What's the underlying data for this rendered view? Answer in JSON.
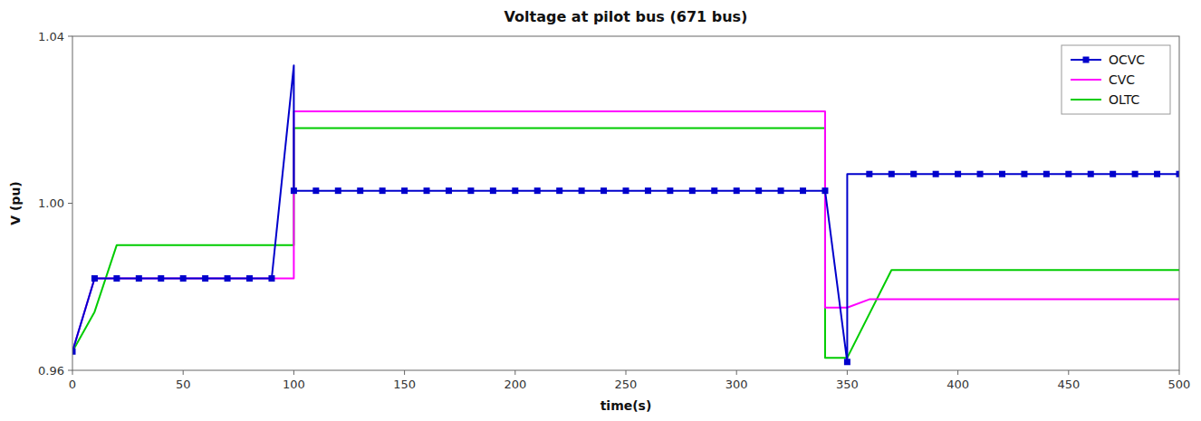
{
  "chart_data": {
    "type": "line",
    "title": "Voltage at pilot bus (671 bus)",
    "x_label": "time(s)",
    "y_label": "V (pu)",
    "xlim": [
      0,
      500
    ],
    "ylim": [
      0.96,
      1.04
    ],
    "xticks": [
      0,
      50,
      100,
      150,
      200,
      250,
      300,
      350,
      400,
      450,
      500
    ],
    "yticks": [
      0.96,
      {
        "value": 1.0,
        "label": "1.00"
      },
      1.04
    ],
    "grid": false,
    "legend": "upper right",
    "series": [
      {
        "name": "OCVC",
        "color": "#0000CC",
        "marker": "square",
        "x": [
          0,
          10,
          20,
          30,
          40,
          50,
          60,
          70,
          80,
          90,
          100,
          100,
          110,
          120,
          130,
          140,
          150,
          160,
          170,
          180,
          190,
          200,
          210,
          220,
          230,
          240,
          250,
          260,
          270,
          280,
          290,
          300,
          310,
          320,
          330,
          340,
          340,
          350,
          350,
          360,
          370,
          380,
          390,
          400,
          410,
          420,
          430,
          440,
          450,
          460,
          470,
          480,
          490,
          500
        ],
        "values": [
          0.9645,
          0.982,
          0.982,
          0.982,
          0.982,
          0.982,
          0.982,
          0.982,
          0.982,
          0.982,
          1.033,
          1.003,
          1.003,
          1.003,
          1.003,
          1.003,
          1.003,
          1.003,
          1.003,
          1.003,
          1.003,
          1.003,
          1.003,
          1.003,
          1.003,
          1.003,
          1.003,
          1.003,
          1.003,
          1.003,
          1.003,
          1.003,
          1.003,
          1.003,
          1.003,
          1.003,
          1.003,
          0.962,
          1.007,
          1.007,
          1.007,
          1.007,
          1.007,
          1.007,
          1.007,
          1.007,
          1.007,
          1.007,
          1.007,
          1.007,
          1.007,
          1.007,
          1.007,
          1.007
        ],
        "marker_x": [
          0,
          10,
          20,
          30,
          40,
          50,
          60,
          70,
          80,
          90,
          100,
          110,
          120,
          130,
          140,
          150,
          160,
          170,
          180,
          190,
          200,
          210,
          220,
          230,
          240,
          250,
          260,
          270,
          280,
          290,
          300,
          310,
          320,
          330,
          340,
          350,
          360,
          370,
          380,
          390,
          400,
          410,
          420,
          430,
          440,
          450,
          460,
          470,
          480,
          490,
          500
        ],
        "marker_values": [
          0.9645,
          0.982,
          0.982,
          0.982,
          0.982,
          0.982,
          0.982,
          0.982,
          0.982,
          0.982,
          1.003,
          1.003,
          1.003,
          1.003,
          1.003,
          1.003,
          1.003,
          1.003,
          1.003,
          1.003,
          1.003,
          1.003,
          1.003,
          1.003,
          1.003,
          1.003,
          1.003,
          1.003,
          1.003,
          1.003,
          1.003,
          1.003,
          1.003,
          1.003,
          1.003,
          0.962,
          1.007,
          1.007,
          1.007,
          1.007,
          1.007,
          1.007,
          1.007,
          1.007,
          1.007,
          1.007,
          1.007,
          1.007,
          1.007,
          1.007,
          1.007
        ]
      },
      {
        "name": "CVC",
        "color": "#FF00FF",
        "x": [
          0,
          10,
          20,
          100,
          100,
          340,
          340,
          350,
          360,
          500
        ],
        "values": [
          0.9645,
          0.982,
          0.982,
          0.982,
          1.022,
          1.022,
          0.975,
          0.975,
          0.977,
          0.977
        ]
      },
      {
        "name": "OLTC",
        "color": "#00CC00",
        "x": [
          0,
          10,
          20,
          30,
          100,
          100,
          340,
          340,
          350,
          370,
          500
        ],
        "values": [
          0.9645,
          0.974,
          0.99,
          0.99,
          0.99,
          1.018,
          1.018,
          0.963,
          0.963,
          0.984,
          0.984
        ]
      }
    ]
  }
}
